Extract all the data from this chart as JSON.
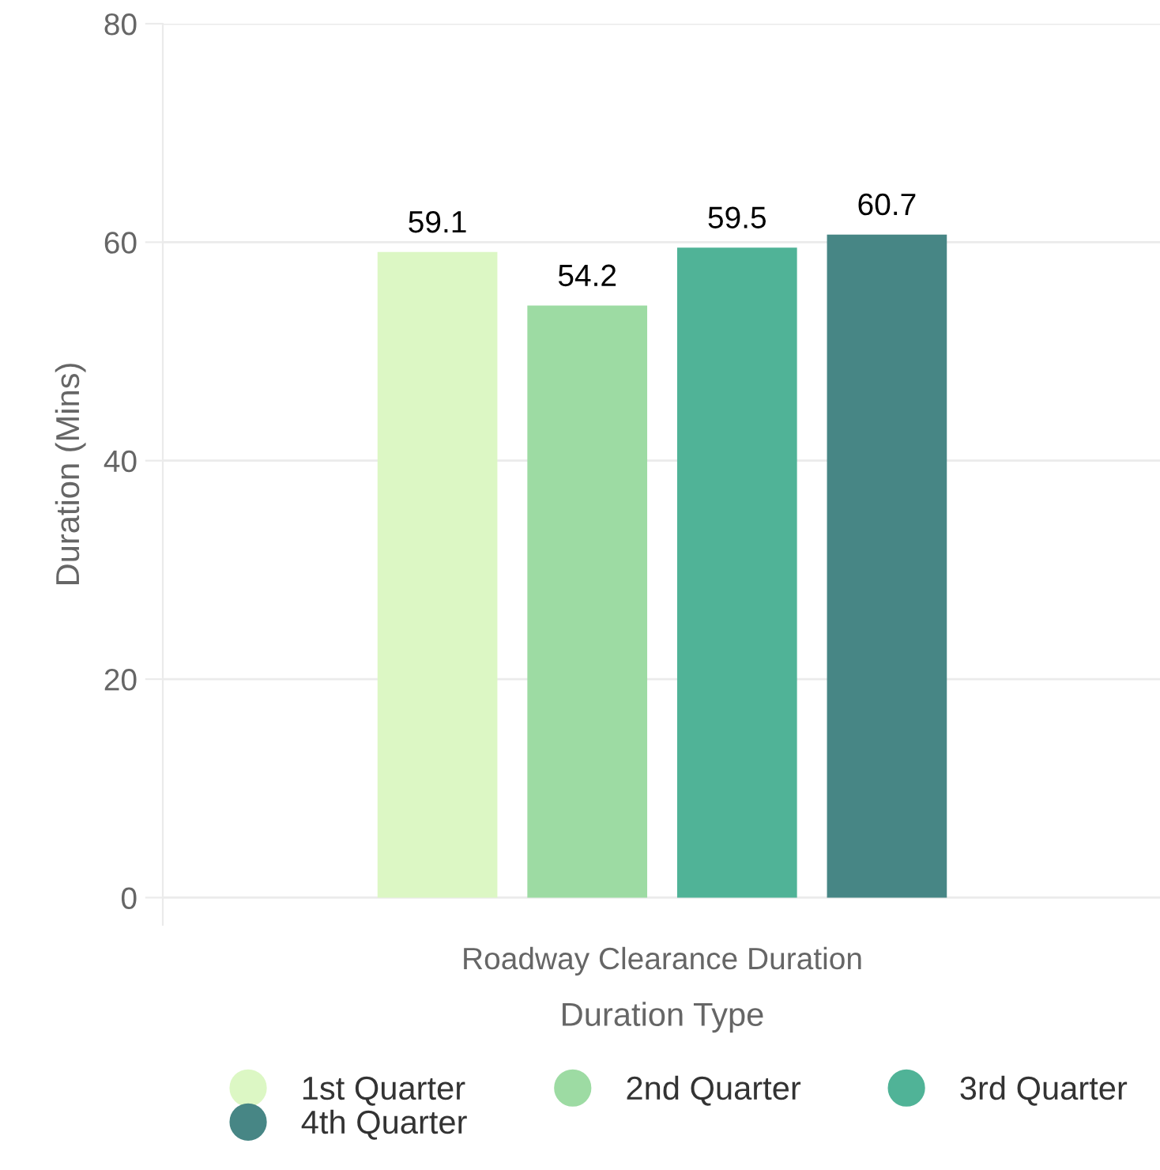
{
  "chart_data": {
    "type": "bar",
    "xlabel": "Duration Type",
    "ylabel": "Duration (Mins)",
    "categories": [
      "Roadway Clearance Duration"
    ],
    "series": [
      {
        "name": "1st Quarter",
        "color": "#dcf7c4",
        "values": [
          59.1
        ]
      },
      {
        "name": "2nd Quarter",
        "color": "#9ddba3",
        "values": [
          54.2
        ]
      },
      {
        "name": "3rd Quarter",
        "color": "#50b397",
        "values": [
          59.5
        ]
      },
      {
        "name": "4th Quarter",
        "color": "#478685",
        "values": [
          60.7
        ]
      }
    ],
    "ylim": [
      -2.5,
      80
    ],
    "yticks": [
      0,
      20,
      40,
      60,
      80
    ],
    "grid": "y",
    "legend": "bottom",
    "data_labels": true
  }
}
